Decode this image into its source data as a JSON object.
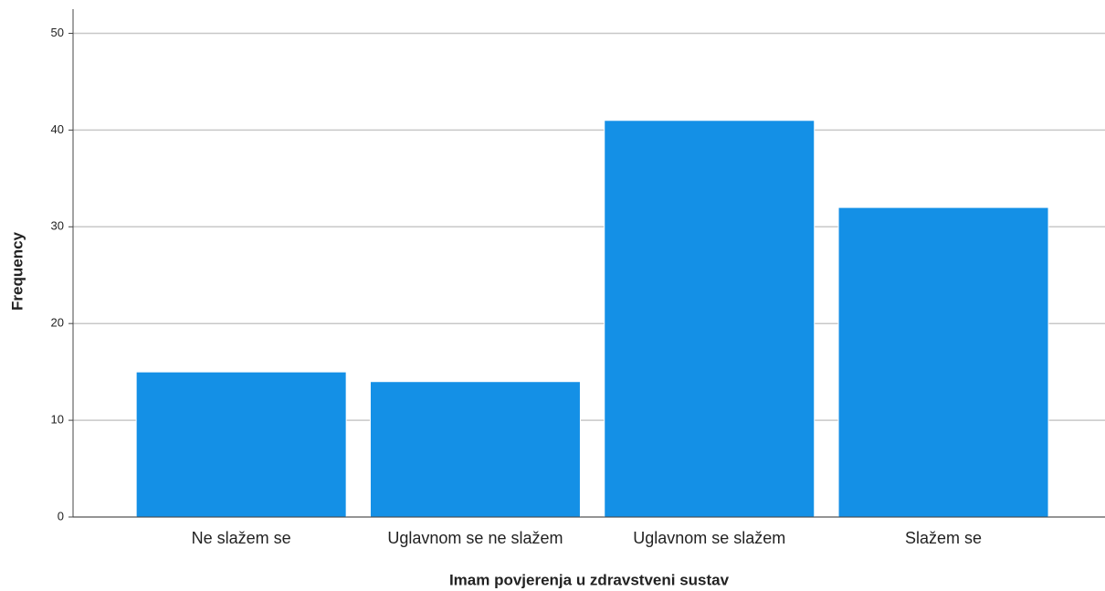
{
  "chart_data": {
    "type": "bar",
    "x_label": "Imam povjerenja u zdravstveni sustav",
    "y_label": "Frequency",
    "categories": [
      "Ne slažem se",
      "Uglavnom se ne slažem",
      "Uglavnom se slažem",
      "Slažem se"
    ],
    "values": [
      15,
      14,
      41,
      32
    ],
    "color": "#1490e6",
    "ylim": [
      0,
      52.5
    ],
    "yticks": [
      0,
      10,
      20,
      30,
      40,
      50
    ],
    "grid": true
  }
}
